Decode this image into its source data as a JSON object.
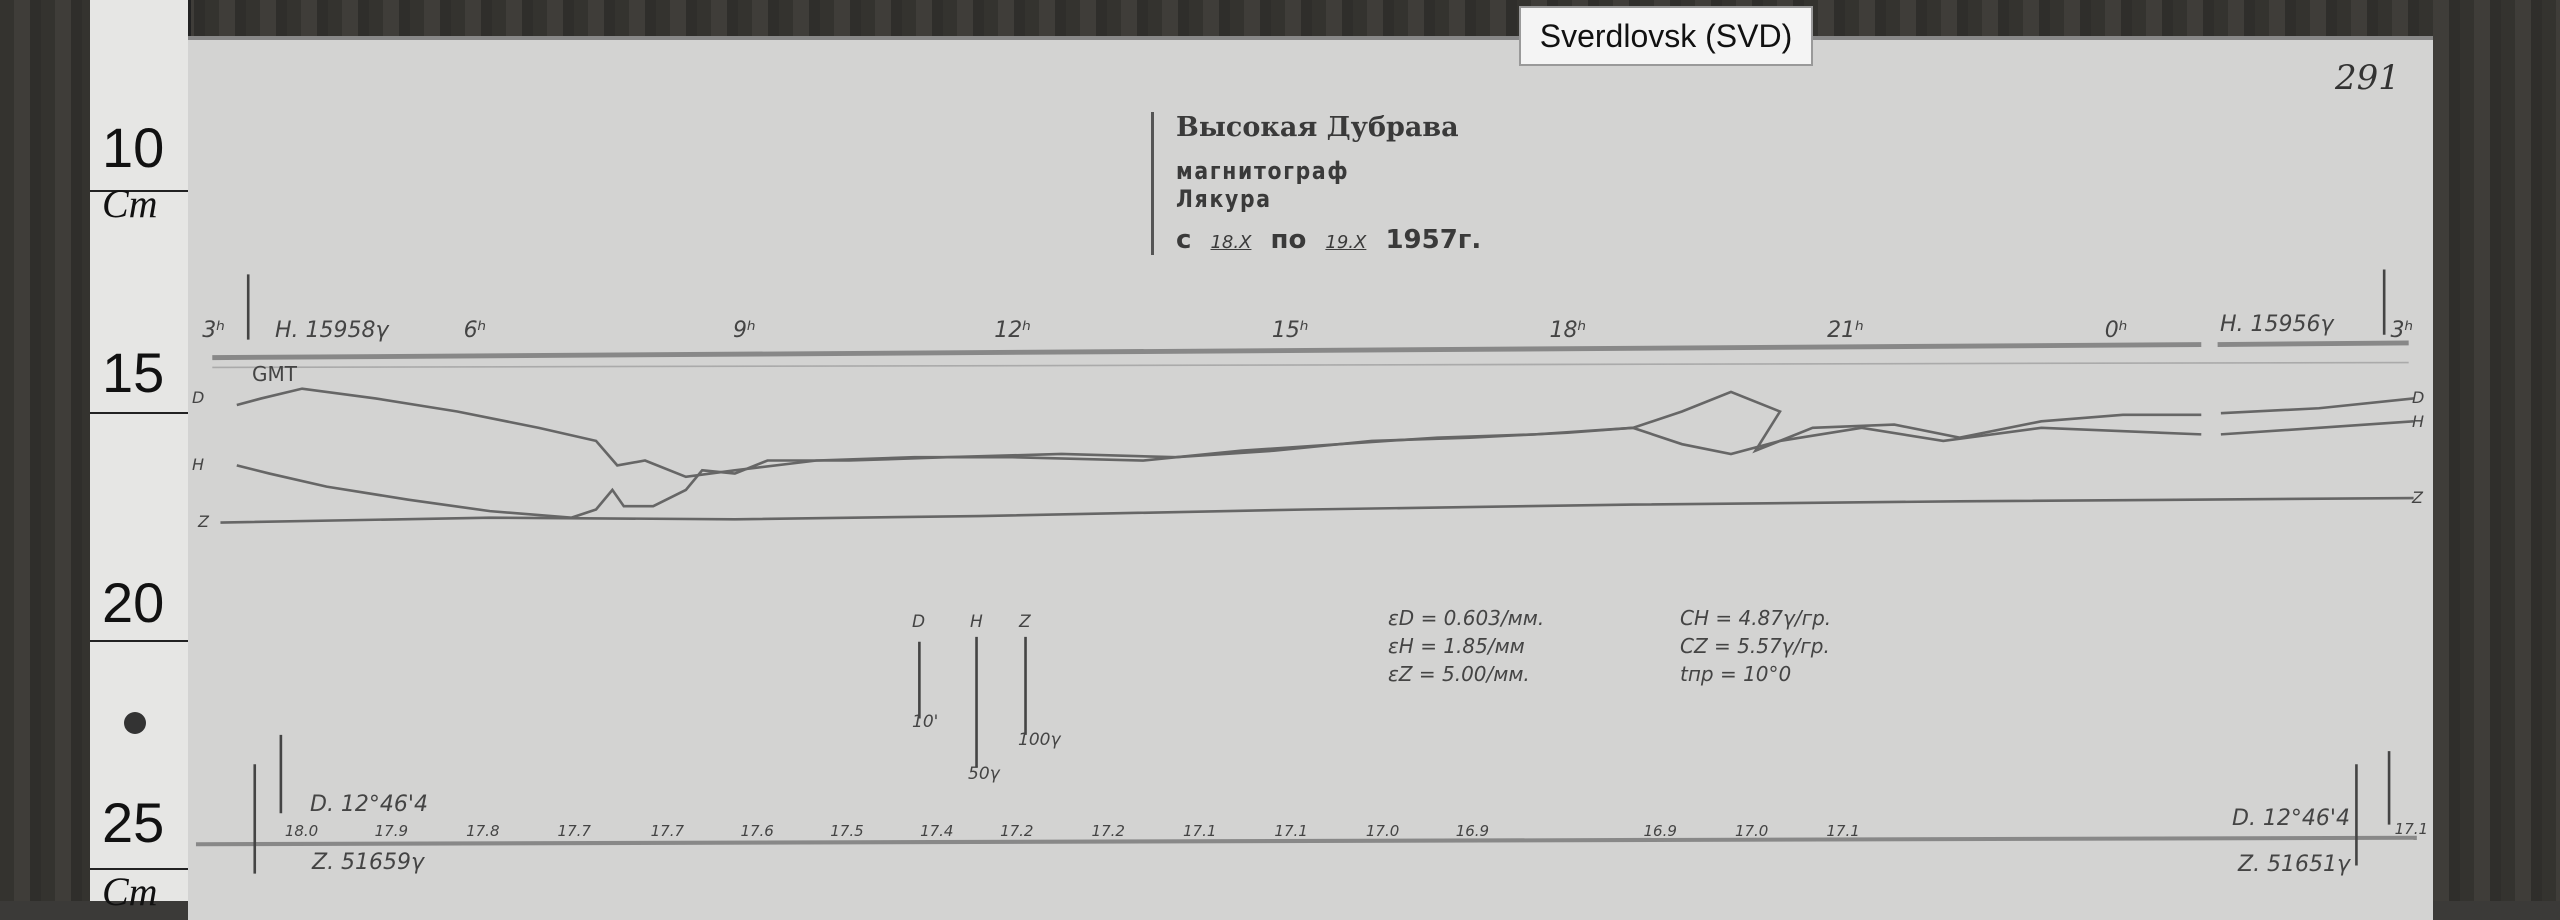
{
  "tag_label": "Sverdlovsk (SVD)",
  "page_number": "291",
  "ruler": {
    "marks": [
      "10",
      "15",
      "20",
      "25"
    ],
    "units": [
      "Cm",
      "Cm"
    ]
  },
  "title": {
    "station": "Высокая Дубрава",
    "instrument": "магнитограф Лякура",
    "date_prefix": "с",
    "date_from": "18.X",
    "date_mid": "по",
    "date_to": "19.X",
    "year": "1957г."
  },
  "hours": [
    "3ʰ",
    "6ʰ",
    "9ʰ",
    "12ʰ",
    "15ʰ",
    "18ʰ",
    "21ʰ",
    "0ʰ",
    "3ʰ"
  ],
  "time_ref": "GMT",
  "baseline_left": "H. 15958γ",
  "baseline_right": "H. 15956γ",
  "trace_labels": {
    "d": "D",
    "h": "H",
    "z": "Z"
  },
  "scale_bars": [
    {
      "name": "D",
      "value": "10'"
    },
    {
      "name": "H",
      "value": "50γ"
    },
    {
      "name": "Z",
      "value": "100γ"
    }
  ],
  "constants_left": [
    "εD = 0.603/мм.",
    "εH = 1.85/мм",
    "εZ = 5.00/мм."
  ],
  "constants_right": [
    "CH = 4.87γ/гр.",
    "CZ = 5.57γ/гр.",
    "tпр = 10°0"
  ],
  "bottom_left_d": "D. 12°46'4",
  "bottom_left_z": "Z. 51659γ",
  "bottom_right_d": "D. 12°46'4",
  "bottom_right_z": "Z. 51651γ",
  "temperatures": [
    "18.0",
    "17.9",
    "17.8",
    "17.7",
    "17.7",
    "17.6",
    "17.5",
    "17.4",
    "17.2",
    "17.2",
    "17.1",
    "17.1",
    "17.0",
    "16.9",
    "16.9",
    "17.0",
    "17.1",
    "17.1"
  ],
  "colors": {
    "paper": "#d3d3d2",
    "trace": "#666666",
    "background": "#3b3a38"
  }
}
